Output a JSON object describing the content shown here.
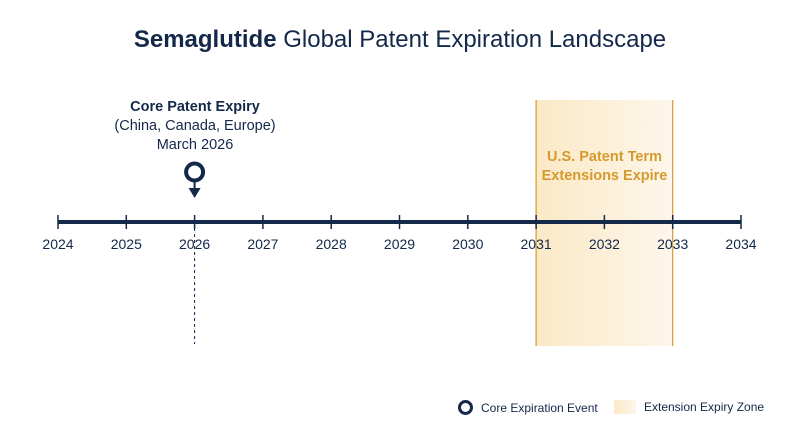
{
  "title": {
    "bold": "Semaglutide",
    "rest": " Global Patent Expiration Landscape"
  },
  "timeline": {
    "years": [
      "2024",
      "2025",
      "2026",
      "2027",
      "2028",
      "2029",
      "2030",
      "2031",
      "2032",
      "2033",
      "2034"
    ],
    "start": 2024,
    "end": 2034
  },
  "core_event": {
    "year": 2026.0,
    "heading": "Core Patent Expiry",
    "regions": "(China, Canada, Europe)",
    "date": "March 2026"
  },
  "extension_zone": {
    "start": 2031,
    "end": 2033,
    "label_line1": "U.S. Patent Term",
    "label_line2": "Extensions Expire"
  },
  "legend": {
    "core": "Core Expiration Event",
    "zone": "Extension Expiry Zone"
  },
  "colors": {
    "navy": "#14284a",
    "gold": "#d59a2e",
    "zone_fill": "#fbe9c6"
  }
}
